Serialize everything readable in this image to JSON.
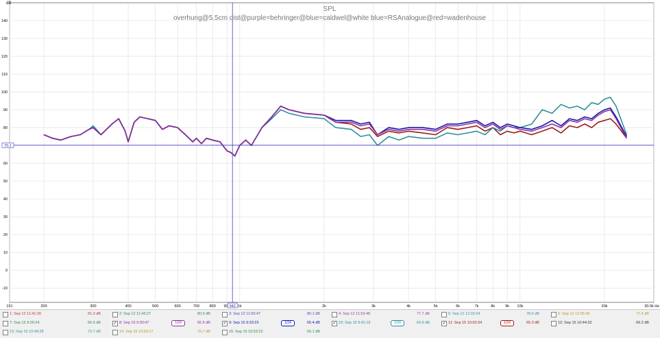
{
  "chart_data": {
    "type": "line",
    "title": "SPL",
    "subtitle": "overhung@5.5cm dist@purple=behringer@blue=caldwel@white blue=RSAnalogue@red=wadenhouse",
    "ylabel": "dB",
    "xlabel": "",
    "x_scale": "log",
    "xlim": [
      151,
      30000
    ],
    "ylim": [
      -18,
      150
    ],
    "y_ticks": [
      -10,
      0,
      10,
      20,
      30,
      40,
      50,
      60,
      70,
      80,
      90,
      100,
      110,
      120,
      130,
      140
    ],
    "x_ticks": [
      {
        "v": 151,
        "label": "151"
      },
      {
        "v": 200,
        "label": "200"
      },
      {
        "v": 300,
        "label": "300"
      },
      {
        "v": 400,
        "label": "400"
      },
      {
        "v": 500,
        "label": "500"
      },
      {
        "v": 600,
        "label": "600"
      },
      {
        "v": 700,
        "label": "700"
      },
      {
        "v": 800,
        "label": "800"
      },
      {
        "v": 900,
        "label": "900"
      },
      {
        "v": 1000,
        "label": "1k"
      },
      {
        "v": 2000,
        "label": "2k"
      },
      {
        "v": 3000,
        "label": "3k"
      },
      {
        "v": 4000,
        "label": "4k"
      },
      {
        "v": 5000,
        "label": "5k"
      },
      {
        "v": 6000,
        "label": "6k"
      },
      {
        "v": 7000,
        "label": "7k"
      },
      {
        "v": 8000,
        "label": "8k"
      },
      {
        "v": 9000,
        "label": "9k"
      },
      {
        "v": 10000,
        "label": "10k"
      },
      {
        "v": 20000,
        "label": "20k"
      },
      {
        "v": 30000,
        "label": "30.0k Hz"
      }
    ],
    "grid": true,
    "cursor": {
      "x": 942,
      "x_label": "942",
      "y": 70.1,
      "y_label": "70.1"
    },
    "series": [
      {
        "name": "11: Sep 15 10:03:34",
        "color": "#9b1b1b",
        "x": [
          200,
          215,
          230,
          250,
          270,
          290,
          300,
          320,
          350,
          370,
          390,
          400,
          420,
          440,
          470,
          500,
          530,
          560,
          600,
          640,
          680,
          700,
          730,
          760,
          800,
          850,
          900,
          930,
          960,
          1000,
          1050,
          1100,
          1200,
          1300,
          1400,
          1500,
          1700,
          2000,
          2200,
          2500,
          2700,
          2900,
          3100,
          3400,
          3700,
          4000,
          4500,
          5000,
          5500,
          6000,
          6500,
          7000,
          7500,
          8000,
          8500,
          9000,
          9500,
          10000,
          11000,
          12000,
          13000,
          14000,
          15000,
          16000,
          17000,
          18000,
          19000,
          20000,
          21000,
          22000,
          24000
        ],
        "y": [
          76,
          74,
          73,
          75,
          76,
          79,
          80,
          76,
          82,
          85,
          78,
          72,
          83,
          86,
          85,
          84,
          79,
          81,
          80,
          76,
          72,
          74,
          71,
          74,
          73,
          72,
          67,
          66,
          64,
          70,
          73,
          70,
          80,
          86,
          92,
          90,
          88,
          87,
          83,
          82,
          79,
          80,
          75,
          78,
          77,
          78,
          77,
          76,
          80,
          79,
          80,
          81,
          78,
          80,
          76,
          78,
          77,
          78,
          76,
          78,
          80,
          77,
          81,
          80,
          82,
          80,
          83,
          84,
          85,
          82,
          74
        ]
      },
      {
        "name": "10: Sep 15 9:41:19",
        "color": "#2f8e9e",
        "x": [
          200,
          215,
          230,
          250,
          270,
          290,
          300,
          320,
          350,
          370,
          390,
          400,
          420,
          440,
          470,
          500,
          530,
          560,
          600,
          640,
          680,
          700,
          730,
          760,
          800,
          850,
          900,
          930,
          960,
          1000,
          1050,
          1100,
          1200,
          1300,
          1400,
          1500,
          1700,
          2000,
          2200,
          2500,
          2700,
          2900,
          3100,
          3400,
          3700,
          4000,
          4500,
          5000,
          5500,
          6000,
          6500,
          7000,
          7500,
          8000,
          8500,
          9000,
          9500,
          10000,
          11000,
          12000,
          13000,
          14000,
          15000,
          16000,
          17000,
          18000,
          19000,
          20000,
          21000,
          22000,
          24000
        ],
        "y": [
          76,
          74,
          73,
          75,
          76,
          79,
          81,
          76,
          82,
          85,
          78,
          72,
          83,
          86,
          85,
          84,
          79,
          81,
          80,
          76,
          72,
          74,
          71,
          74,
          73,
          72,
          67,
          66,
          64,
          70,
          73,
          70,
          80,
          85,
          90,
          88,
          86,
          85,
          80,
          79,
          75,
          76,
          70,
          75,
          73,
          75,
          74,
          74,
          77,
          76,
          77,
          78,
          76,
          80,
          78,
          81,
          80,
          80,
          82,
          90,
          88,
          93,
          91,
          92,
          90,
          94,
          93,
          96,
          97,
          92,
          76
        ]
      },
      {
        "name": "9: Sep 15 9:33:23",
        "color": "#1414b4",
        "x": [
          200,
          215,
          230,
          250,
          270,
          290,
          300,
          320,
          350,
          370,
          390,
          400,
          420,
          440,
          470,
          500,
          530,
          560,
          600,
          640,
          680,
          700,
          730,
          760,
          800,
          850,
          900,
          930,
          960,
          1000,
          1050,
          1100,
          1200,
          1300,
          1400,
          1500,
          1700,
          2000,
          2200,
          2500,
          2700,
          2900,
          3100,
          3400,
          3700,
          4000,
          4500,
          5000,
          5500,
          6000,
          6500,
          7000,
          7500,
          8000,
          8500,
          9000,
          9500,
          10000,
          11000,
          12000,
          13000,
          14000,
          15000,
          16000,
          17000,
          18000,
          19000,
          20000,
          21000,
          22000,
          24000
        ],
        "y": [
          76,
          74,
          73,
          75,
          76,
          79,
          80,
          76,
          82,
          85,
          78,
          72,
          83,
          86,
          85,
          84,
          79,
          81,
          80,
          76,
          72,
          74,
          71,
          74,
          73,
          72,
          67,
          66,
          64,
          70,
          73,
          70,
          80,
          86,
          92,
          90,
          88,
          87,
          84,
          84,
          82,
          83,
          76,
          80,
          79,
          80,
          80,
          79,
          82,
          82,
          83,
          84,
          81,
          83,
          80,
          82,
          81,
          80,
          79,
          81,
          84,
          81,
          85,
          84,
          86,
          85,
          88,
          90,
          91,
          86,
          75
        ]
      },
      {
        "name": "8: Sep 15 9:30:47",
        "color": "#8d2f9c",
        "x": [
          200,
          215,
          230,
          250,
          270,
          290,
          300,
          320,
          350,
          370,
          390,
          400,
          420,
          440,
          470,
          500,
          530,
          560,
          600,
          640,
          680,
          700,
          730,
          760,
          800,
          850,
          900,
          930,
          960,
          1000,
          1050,
          1100,
          1200,
          1300,
          1400,
          1500,
          1700,
          2000,
          2200,
          2500,
          2700,
          2900,
          3100,
          3400,
          3700,
          4000,
          4500,
          5000,
          5500,
          6000,
          6500,
          7000,
          7500,
          8000,
          8500,
          9000,
          9500,
          10000,
          11000,
          12000,
          13000,
          14000,
          15000,
          16000,
          17000,
          18000,
          19000,
          20000,
          21000,
          22000,
          24000
        ],
        "y": [
          76,
          74,
          73,
          75,
          76,
          79,
          80,
          76,
          82,
          85,
          78,
          72,
          83,
          86,
          85,
          84,
          79,
          81,
          80,
          76,
          72,
          74,
          71,
          74,
          73,
          72,
          67,
          66,
          64,
          70,
          73,
          70,
          80,
          86,
          92,
          90,
          88,
          87,
          83,
          83,
          81,
          82,
          76,
          79,
          78,
          79,
          79,
          78,
          81,
          81,
          82,
          83,
          80,
          82,
          79,
          81,
          80,
          79,
          78,
          80,
          82,
          80,
          84,
          83,
          85,
          84,
          87,
          89,
          90,
          85,
          74
        ]
      }
    ]
  },
  "legend": {
    "row1": [
      {
        "label": "1: Sep 12 11:41:30",
        "value": "81.0 dB",
        "checked": false,
        "color": "#c0392b"
      },
      {
        "label": "2: Sep 12 11:43:27",
        "value": "80.5 dB",
        "checked": false,
        "color": "#2e8b57"
      },
      {
        "label": "3: Sep 12 11:50:47",
        "value": "80.1 dB",
        "checked": false,
        "color": "#4b50b0"
      },
      {
        "label": "4: Sep 12 11:53:48",
        "value": "77.7 dB",
        "checked": false,
        "color": "#a0409f"
      },
      {
        "label": "5: Sep 12 12:03:24",
        "value": "78.6 dB",
        "checked": false,
        "color": "#3a94a6"
      },
      {
        "label": "6: Sep 12 12:05:49",
        "value": "77.4 dB",
        "checked": false,
        "color": "#b89a1f"
      }
    ],
    "row2": [
      {
        "label": "7: Sep 15 9:26:24",
        "value": "65.6 dB",
        "checked": false,
        "color": "#2e8b57"
      },
      {
        "label": "8: Sep 15 9:30:47",
        "value": "65.5 dB",
        "checked": true,
        "color": "#8d2f9c",
        "smooth": "1/24"
      },
      {
        "label": "9: Sep 15 9:33:23",
        "value": "65.4 dB",
        "checked": true,
        "color": "#1414b4",
        "smooth": "1/24"
      },
      {
        "label": "10: Sep 15 9:41:19",
        "value": "64.9 dB",
        "checked": true,
        "color": "#2f8e9e",
        "smooth": "1/24"
      },
      {
        "label": "11: Sep 15 10:03:34",
        "value": "65.3 dB",
        "checked": true,
        "color": "#9b1b1b",
        "smooth": "1/24"
      },
      {
        "label": "12: Sep 15 10:44:32",
        "value": "69.2 dB",
        "checked": false,
        "color": "#333333"
      }
    ],
    "row3": [
      {
        "label": "13: Sep 15 10:48:28",
        "value": "72.7 dB",
        "checked": false,
        "color": "#3a94a6"
      },
      {
        "label": "14: Sep 15 10:50:17",
        "value": "70.7 dB",
        "checked": false,
        "color": "#b89a1f"
      },
      {
        "label": "15: Sep 15 10:53:22",
        "value": "66.1 dB",
        "checked": false,
        "color": "#2e8b57"
      }
    ]
  }
}
